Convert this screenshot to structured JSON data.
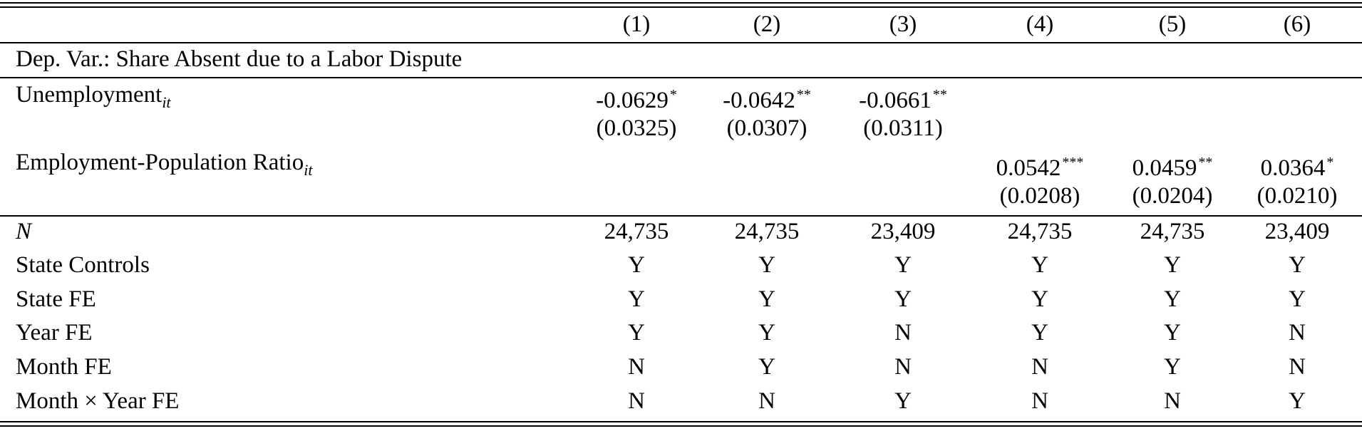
{
  "columns": [
    "(1)",
    "(2)",
    "(3)",
    "(4)",
    "(5)",
    "(6)"
  ],
  "dep_var": "Dep. Var.: Share Absent due to a Labor Dispute",
  "unemployment": {
    "label": "Unemployment",
    "subscript": "it",
    "coefs": [
      {
        "value": "-0.0629",
        "stars": "*"
      },
      {
        "value": "-0.0642",
        "stars": "**"
      },
      {
        "value": "-0.0661",
        "stars": "**"
      },
      {
        "value": "",
        "stars": ""
      },
      {
        "value": "",
        "stars": ""
      },
      {
        "value": "",
        "stars": ""
      }
    ],
    "ses": [
      "(0.0325)",
      "(0.0307)",
      "(0.0311)",
      "",
      "",
      ""
    ]
  },
  "epop": {
    "label": "Employment-Population Ratio",
    "subscript": "it",
    "coefs": [
      {
        "value": "",
        "stars": ""
      },
      {
        "value": "",
        "stars": ""
      },
      {
        "value": "",
        "stars": ""
      },
      {
        "value": "0.0542",
        "stars": "***"
      },
      {
        "value": "0.0459",
        "stars": "**"
      },
      {
        "value": "0.0364",
        "stars": "*"
      }
    ],
    "ses": [
      "",
      "",
      "",
      "(0.0208)",
      "(0.0204)",
      "(0.0210)"
    ]
  },
  "n_row": {
    "label": "N",
    "values": [
      "24,735",
      "24,735",
      "23,409",
      "24,735",
      "24,735",
      "23,409"
    ]
  },
  "indicator_rows": [
    {
      "label": "State Controls",
      "values": [
        "Y",
        "Y",
        "Y",
        "Y",
        "Y",
        "Y"
      ]
    },
    {
      "label": "State FE",
      "values": [
        "Y",
        "Y",
        "Y",
        "Y",
        "Y",
        "Y"
      ]
    },
    {
      "label": "Year FE",
      "values": [
        "Y",
        "Y",
        "N",
        "Y",
        "Y",
        "N"
      ]
    },
    {
      "label": "Month FE",
      "values": [
        "N",
        "Y",
        "N",
        "N",
        "Y",
        "N"
      ]
    },
    {
      "label": "Month × Year FE",
      "values": [
        "N",
        "N",
        "Y",
        "N",
        "N",
        "Y"
      ]
    }
  ]
}
